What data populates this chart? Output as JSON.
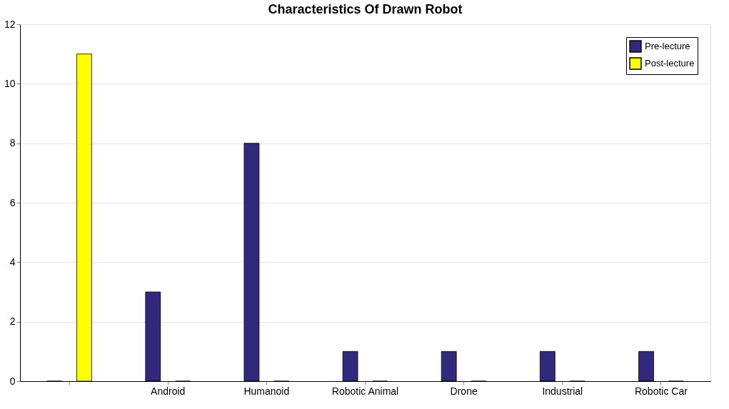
{
  "chart_data": {
    "type": "bar",
    "title": "Characteristics Of Drawn Robot",
    "categories": [
      null,
      "Android",
      "Humanoid",
      "Robotic Animal",
      "Drone",
      "Industrial",
      "Robotic Car"
    ],
    "series": [
      {
        "name": "Pre-lecture",
        "color": "#32297f",
        "values": [
          0,
          3,
          8,
          1,
          1,
          1,
          1
        ]
      },
      {
        "name": "Post-lecture",
        "color": "#ffff00",
        "values": [
          11,
          0,
          0,
          0,
          0,
          0,
          0
        ]
      }
    ],
    "ylim": [
      0,
      12
    ],
    "yticks": [
      0,
      2,
      4,
      6,
      8,
      10,
      12
    ],
    "grid": "y",
    "legend": "top right"
  }
}
